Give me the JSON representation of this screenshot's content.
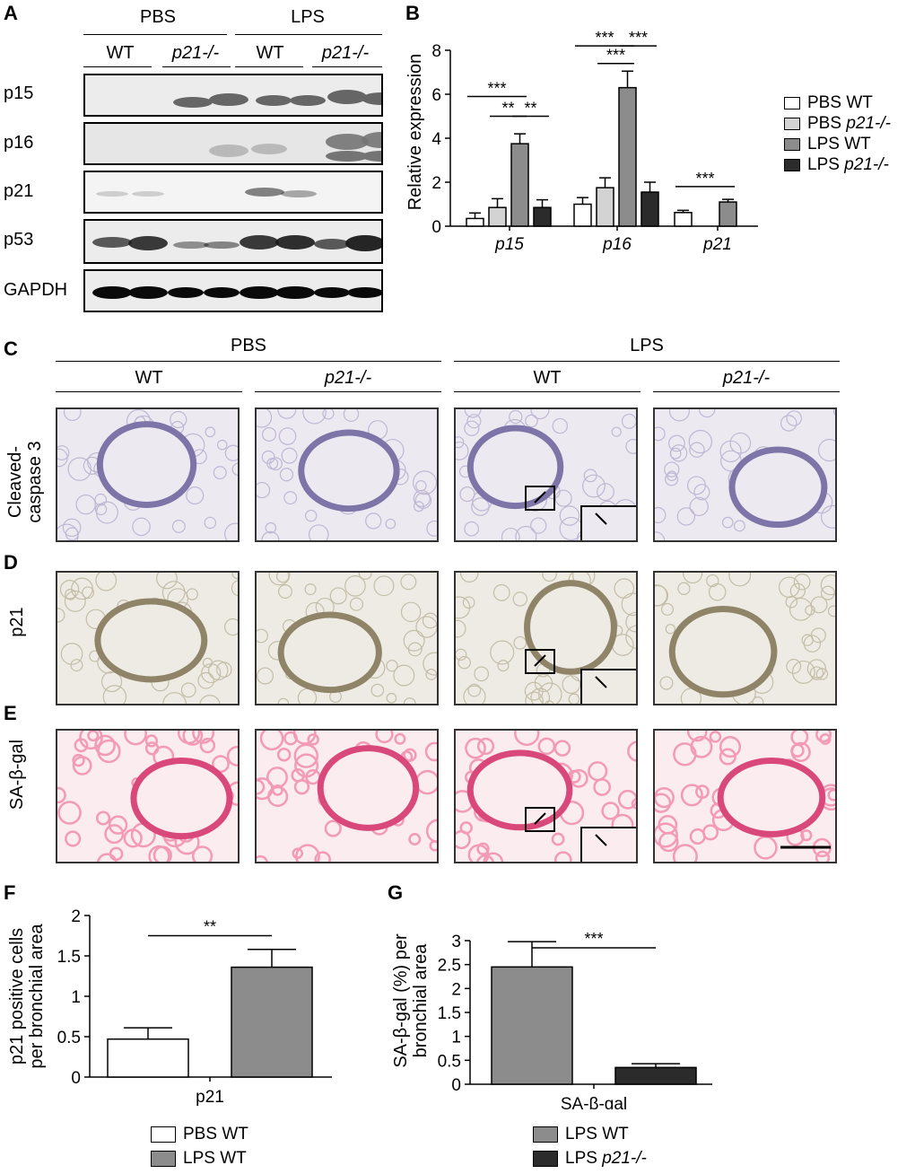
{
  "panel_labels": {
    "a": "A",
    "b": "B",
    "c": "C",
    "d": "D",
    "e": "E",
    "f": "F",
    "g": "G"
  },
  "panel_a": {
    "groups": [
      "PBS",
      "LPS"
    ],
    "genotypes": [
      "WT",
      "p21-/-",
      "WT",
      "p21-/-"
    ],
    "rows": [
      "p15",
      "p16",
      "p21",
      "p53",
      "GAPDH"
    ]
  },
  "panel_cde": {
    "groups": [
      "PBS",
      "LPS"
    ],
    "genotypes": [
      "WT",
      "p21-/-",
      "WT",
      "p21-/-"
    ],
    "rows": [
      "Cleaved-\ncaspase 3",
      "p21",
      "SA-β-gal"
    ],
    "row_c_line1": "Cleaved-",
    "row_c_line2": "caspase 3"
  },
  "chart_data": [
    {
      "type": "bar",
      "panel": "B",
      "categories": [
        "p15",
        "p16",
        "p21"
      ],
      "ylabel": "Relative expression",
      "ylim": [
        0,
        8
      ],
      "yticks": [
        "0",
        "2",
        "4",
        "6",
        "8"
      ],
      "series": [
        {
          "name": "PBS WT",
          "color": "#ffffff",
          "values": [
            0.35,
            1.0,
            0.62
          ],
          "err": [
            0.25,
            0.3,
            0.1
          ]
        },
        {
          "name": "PBS p21-/-",
          "color": "#d3d3d3",
          "values": [
            0.85,
            1.75,
            null
          ],
          "err": [
            0.4,
            0.45,
            null
          ]
        },
        {
          "name": "LPS WT",
          "color": "#8c8c8c",
          "values": [
            3.75,
            6.3,
            1.1
          ],
          "err": [
            0.45,
            0.75,
            0.12
          ]
        },
        {
          "name": "LPS p21-/-",
          "color": "#2b2b2b",
          "values": [
            0.85,
            1.55,
            null
          ],
          "err": [
            0.35,
            0.45,
            null
          ]
        }
      ],
      "significance": [
        "***",
        "**",
        "**",
        "***",
        "***",
        "***",
        "***"
      ]
    },
    {
      "type": "bar",
      "panel": "F",
      "categories": [
        "p21"
      ],
      "ylabel_line1": "p21 positive cells",
      "ylabel_line2": "per bronchial area",
      "ylim": [
        0,
        2
      ],
      "yticks": [
        "0",
        "0.5",
        "1",
        "1.5",
        "2"
      ],
      "series": [
        {
          "name": "PBS WT",
          "color": "#ffffff",
          "values": [
            0.47
          ],
          "err": [
            0.14
          ]
        },
        {
          "name": "LPS WT",
          "color": "#8c8c8c",
          "values": [
            1.36
          ],
          "err": [
            0.22
          ]
        }
      ],
      "significance": [
        "**"
      ]
    },
    {
      "type": "bar",
      "panel": "G",
      "categories": [
        "SA-β-gal"
      ],
      "ylabel_line1": "SA-β-gal (%) per",
      "ylabel_line2": "bronchial area",
      "ylim": [
        0,
        3
      ],
      "yticks": [
        "0",
        "0.5",
        "1",
        "1.5",
        "2",
        "2.5",
        "3"
      ],
      "series": [
        {
          "name": "LPS WT",
          "color": "#8c8c8c",
          "values": [
            2.45
          ],
          "err": [
            0.53
          ]
        },
        {
          "name": "LPS p21-/-",
          "color": "#2b2b2b",
          "values": [
            0.35
          ],
          "err": [
            0.08
          ]
        }
      ],
      "significance": [
        "***"
      ]
    }
  ]
}
